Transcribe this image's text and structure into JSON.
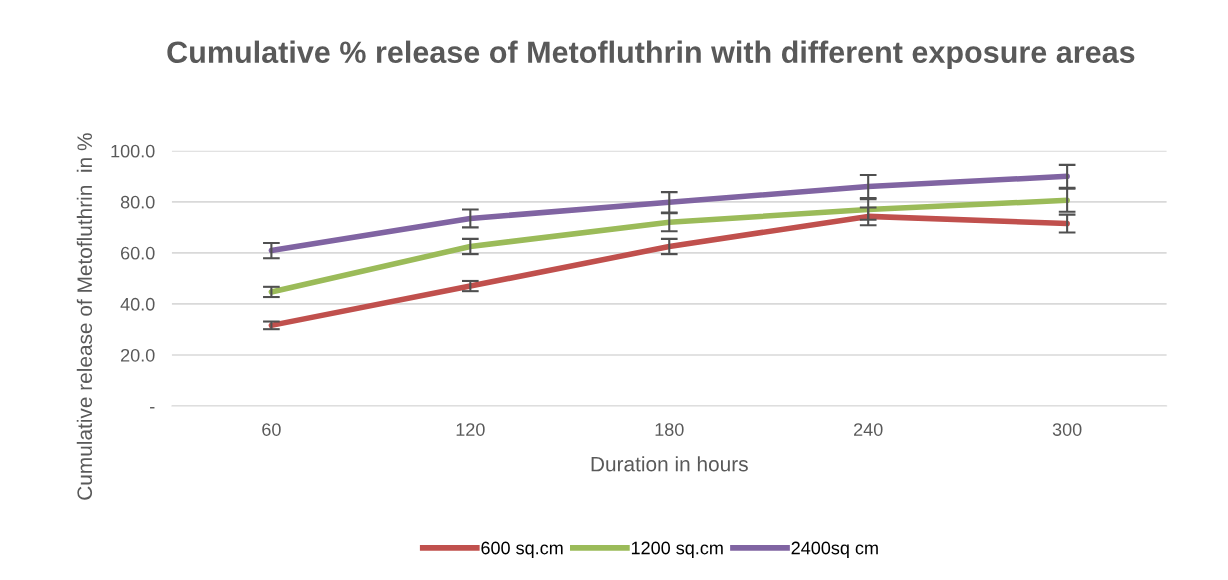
{
  "chart_data": {
    "type": "line",
    "title": "Cumulative % release of Metofluthrin with different exposure areas",
    "xlabel": "Duration in hours",
    "ylabel": "Cumulative release of Metofluthrin  in %",
    "categories": [
      "60",
      "120",
      "180",
      "240",
      "300"
    ],
    "series": [
      {
        "name": "600 sq.cm",
        "color": "#c0504d",
        "values": [
          31.6,
          47.0,
          62.5,
          74.3,
          71.5
        ],
        "errors": [
          1.5,
          2,
          3,
          3.5,
          3.5
        ]
      },
      {
        "name": "1200 sq.cm",
        "color": "#9bbb59",
        "values": [
          44.7,
          62.5,
          72.0,
          77.0,
          80.6
        ],
        "errors": [
          2,
          3,
          3.5,
          4,
          4.5
        ]
      },
      {
        "name": "2400sq cm",
        "color": "#8064a2",
        "values": [
          60.9,
          73.5,
          79.8,
          86.0,
          90.0
        ],
        "errors": [
          3,
          3.5,
          4,
          4.5,
          4.5
        ]
      }
    ],
    "ylim": [
      0,
      100
    ],
    "yticks": [
      {
        "value": 0,
        "label": "-"
      },
      {
        "value": 20,
        "label": "20.0"
      },
      {
        "value": 40,
        "label": "40.0"
      },
      {
        "value": 60,
        "label": "60.0"
      },
      {
        "value": 80,
        "label": "80.0"
      },
      {
        "value": 100,
        "label": "100.0"
      }
    ],
    "grid": "y",
    "legend": "bottom",
    "marker": "none",
    "line_style": "solid"
  }
}
